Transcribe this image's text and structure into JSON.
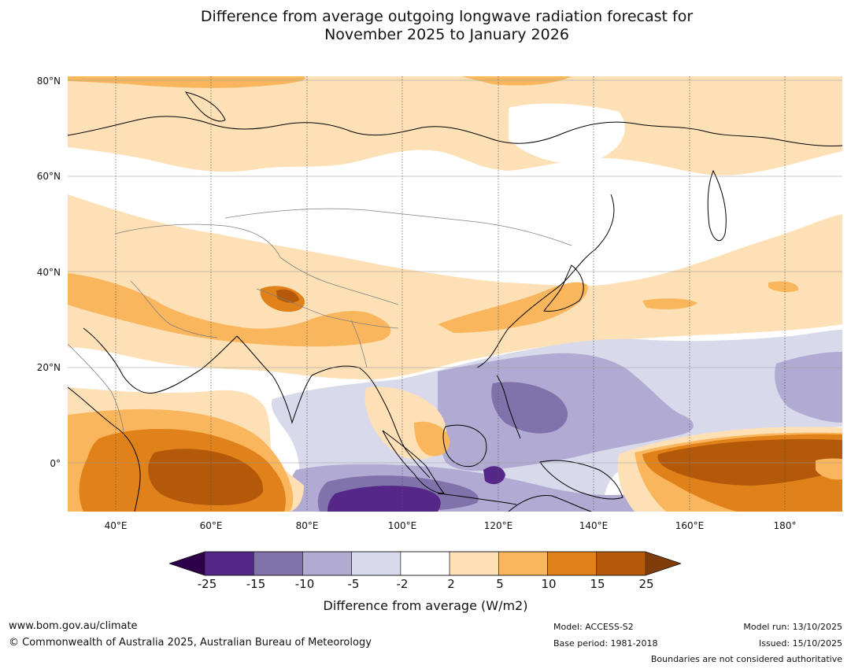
{
  "title": {
    "line1": "Difference from average outgoing longwave radiation forecast for",
    "line2": "November 2025 to January 2026"
  },
  "map": {
    "lat_labels": [
      "80°N",
      "60°N",
      "40°N",
      "20°N",
      "0°"
    ],
    "lon_labels": [
      "40°E",
      "60°E",
      "80°E",
      "100°E",
      "120°E",
      "140°E",
      "160°E",
      "180°"
    ],
    "extent": {
      "lon_min": 30,
      "lon_max": 192,
      "lat_min": -10,
      "lat_max": 81
    },
    "colors": {
      "ocean_white": "#ffffff",
      "pos_2_5": "#fde0b6",
      "pos_5_10": "#fab65c",
      "pos_10_15": "#e08119",
      "pos_15_25": "#b4590a",
      "pos_above_25": "#7f3b08",
      "neg_2_5": "#d8d9ea",
      "neg_5_10": "#b1aad2",
      "neg_10_15": "#8073ac",
      "neg_15_25": "#542788",
      "neg_below_25": "#2d004b",
      "coastline": "#000000",
      "borders": "#808080",
      "gridline": "#999999"
    }
  },
  "colorbar": {
    "ticks": [
      "-25",
      "-15",
      "-10",
      "-5",
      "-2",
      "2",
      "5",
      "10",
      "15",
      "25"
    ],
    "segments": [
      "#542788",
      "#8073ac",
      "#b1aad2",
      "#d8d9ea",
      "#ffffff",
      "#fde0b6",
      "#fab65c",
      "#e08119",
      "#b4590a"
    ],
    "low_extend_color": "#2d004b",
    "high_extend_color": "#7f3b08",
    "label": "Difference from average (W/m2)"
  },
  "footer": {
    "website": "www.bom.gov.au/climate",
    "copyright": "© Commonwealth of Australia 2025, Australian Bureau of Meteorology",
    "model": "Model: ACCESS-S2",
    "base_period": "Base period: 1981-2018",
    "model_run": "Model run: 13/10/2025",
    "issued": "Issued: 15/10/2025",
    "disclaimer": "Boundaries are not considered authoritative"
  }
}
